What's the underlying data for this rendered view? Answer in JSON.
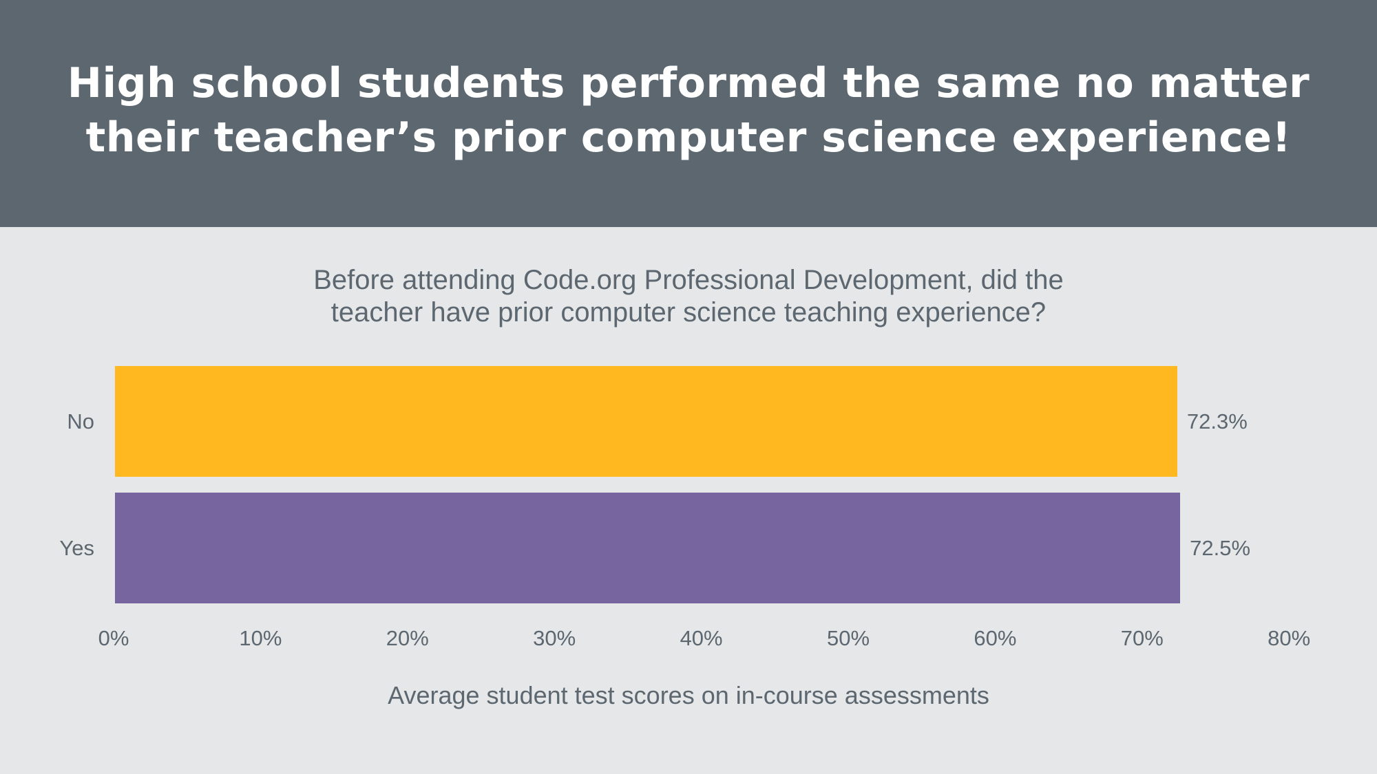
{
  "header": {
    "title_lines": [
      "High school students performed the same no matter",
      "their teacher’s prior computer science experience!"
    ],
    "background": "#5c6770"
  },
  "chart": {
    "subtitle_lines": [
      "Before attending Code.org Professional Development, did the",
      "teacher have prior computer science teaching experience?"
    ]
  },
  "chart_data": {
    "type": "bar",
    "orientation": "horizontal",
    "title": "High school students performed the same no matter their teacher’s prior computer science experience!",
    "subtitle": "Before attending Code.org Professional Development, did the teacher have prior computer science teaching experience?",
    "categories": [
      "No",
      "Yes"
    ],
    "values": [
      72.3,
      72.5
    ],
    "value_labels": [
      "72.3%",
      "72.5%"
    ],
    "colors": [
      "#ffb81f",
      "#77659f"
    ],
    "xlabel": "Average student test scores on in-course assessments",
    "ylabel": "",
    "xlim": [
      0,
      80
    ],
    "x_ticks": [
      "0%",
      "10%",
      "20%",
      "30%",
      "40%",
      "50%",
      "60%",
      "70%",
      "80%"
    ],
    "grid": false,
    "legend": "none"
  }
}
